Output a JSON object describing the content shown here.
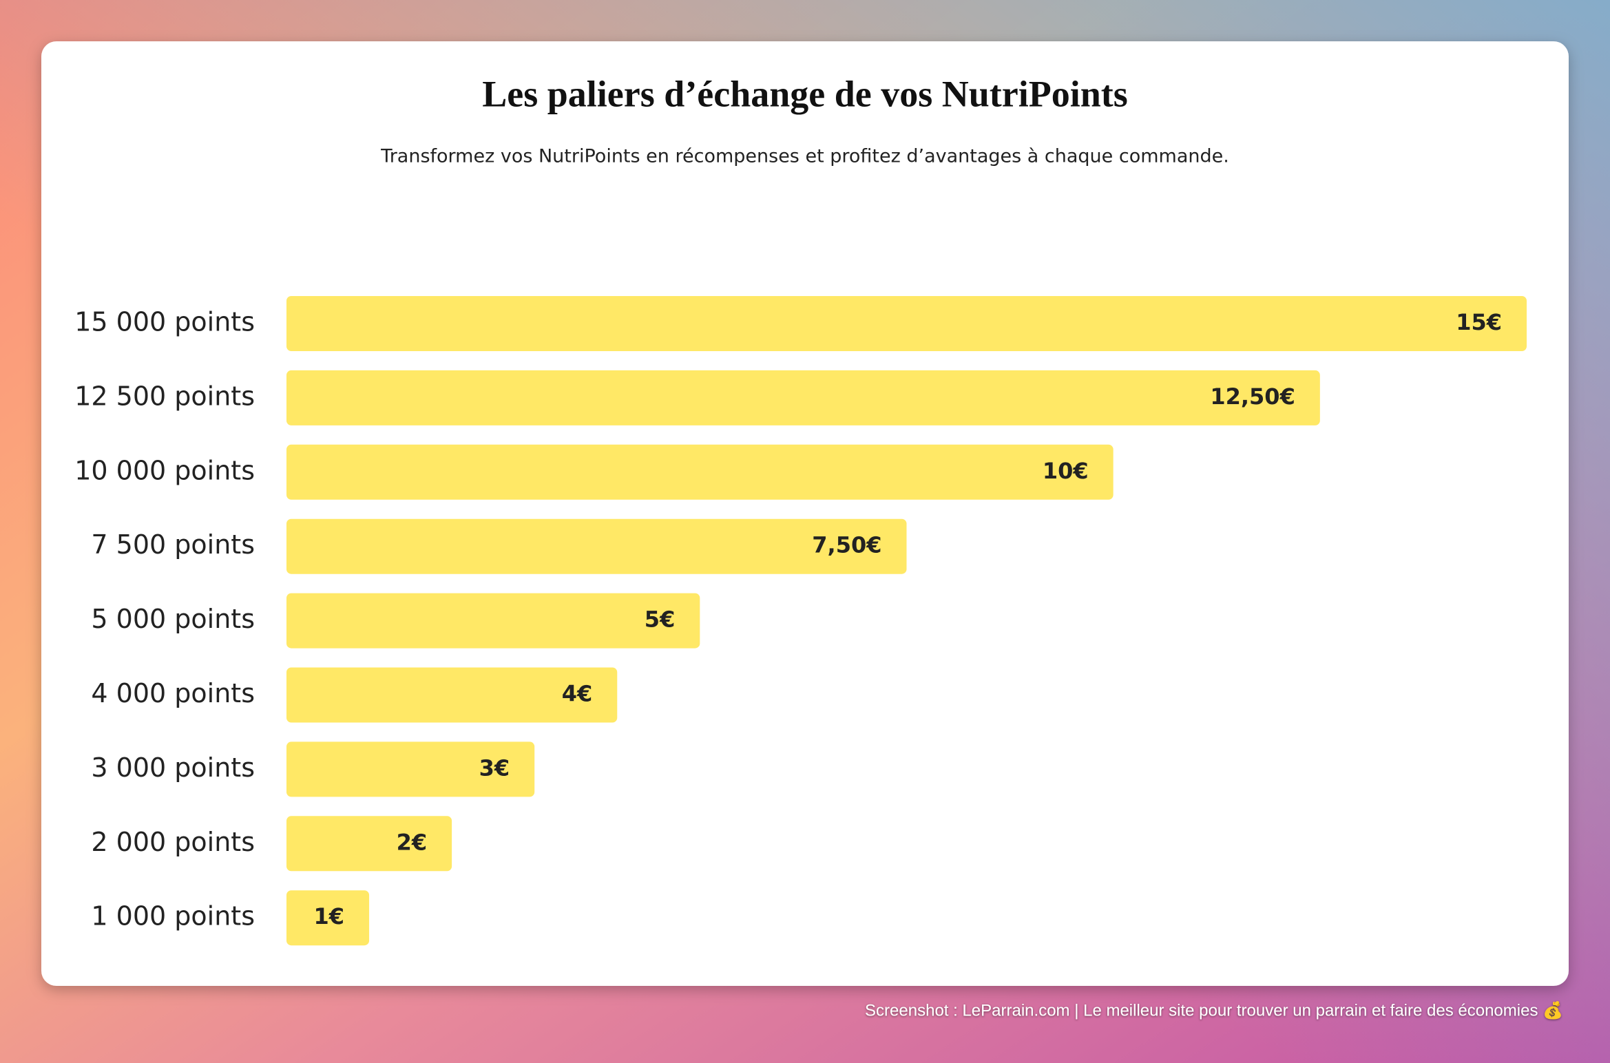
{
  "chart_data": {
    "type": "bar",
    "orientation": "horizontal",
    "title": "Les paliers d’échange de vos NutriPoints",
    "subtitle": "Transformez vos NutriPoints en récompenses et profitez d’avantages à chaque commande.",
    "categories": [
      "15 000 points",
      "12 500 points",
      "10 000 points",
      "7 500 points",
      "5 000 points",
      "4 000 points",
      "3 000 points",
      "2 000 points",
      "1 000 points"
    ],
    "values": [
      15,
      12.5,
      10,
      7.5,
      5,
      4,
      3,
      2,
      1
    ],
    "value_labels": [
      "15€",
      "12,50€",
      "10€",
      "7,50€",
      "5€",
      "4€",
      "3€",
      "2€",
      "1€"
    ],
    "color": "#ffe866"
  },
  "footer": "Screenshot : LeParrain.com | Le meilleur site pour trouver un parrain et faire des économies 💰"
}
